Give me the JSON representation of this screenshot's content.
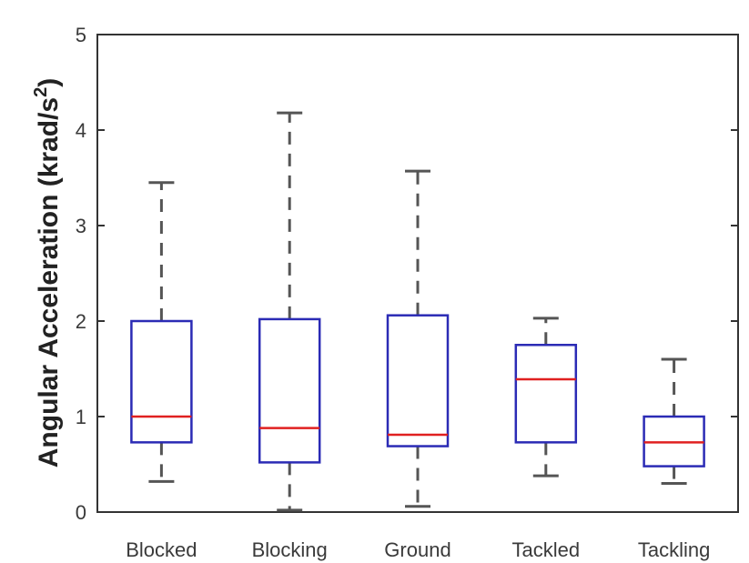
{
  "chart_data": {
    "type": "boxplot",
    "title": "",
    "xlabel": "",
    "ylabel": "Angular Acceleration (krad/s",
    "ylabel_superscript": "2",
    "ylabel_close": ")",
    "ylim": [
      0,
      5
    ],
    "yticks": [
      "0",
      "1",
      "2",
      "3",
      "4",
      "5"
    ],
    "grid": false,
    "categories": [
      "Blocked",
      "Blocking",
      "Ground",
      "Tackled",
      "Tackling"
    ],
    "boxes": [
      {
        "category": "Blocked",
        "whisker_low": 0.32,
        "q1": 0.73,
        "median": 1.0,
        "q3": 2.0,
        "whisker_high": 3.45
      },
      {
        "category": "Blocking",
        "whisker_low": 0.02,
        "q1": 0.52,
        "median": 0.88,
        "q3": 2.02,
        "whisker_high": 4.18
      },
      {
        "category": "Ground",
        "whisker_low": 0.06,
        "q1": 0.69,
        "median": 0.81,
        "q3": 2.06,
        "whisker_high": 3.57
      },
      {
        "category": "Tackled",
        "whisker_low": 0.38,
        "q1": 0.73,
        "median": 1.39,
        "q3": 1.75,
        "whisker_high": 2.03
      },
      {
        "category": "Tackling",
        "whisker_low": 0.3,
        "q1": 0.48,
        "median": 0.73,
        "q3": 1.0,
        "whisker_high": 1.6
      }
    ],
    "colors": {
      "box": "#2b2bb5",
      "median": "#e02020",
      "whisker": "#555555",
      "axis": "#333333"
    }
  }
}
